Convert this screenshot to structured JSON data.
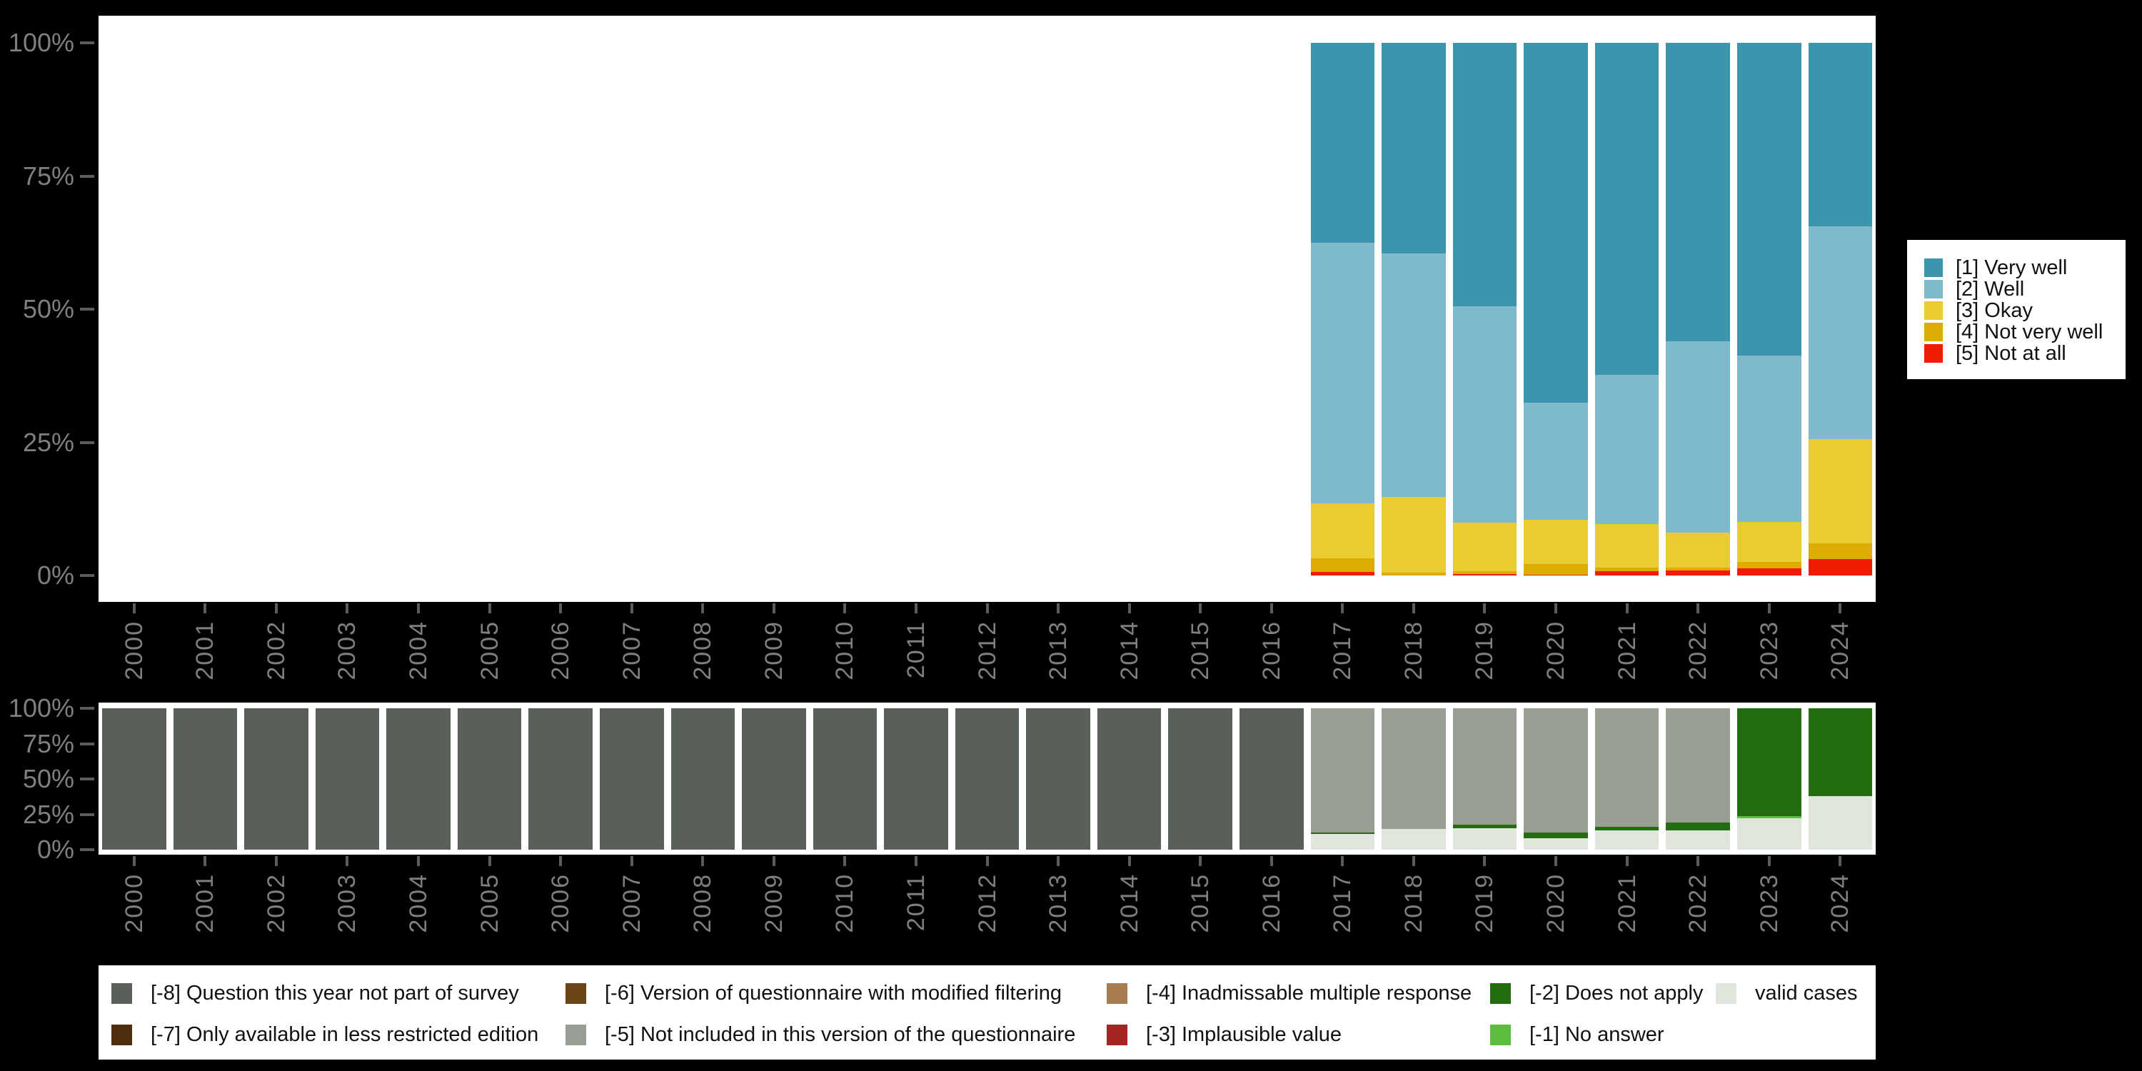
{
  "figure": {
    "background": "#000000",
    "plot_background": "#ffffff",
    "axis_text_color": "#7f7f7f",
    "tick_color": "#5c5c5c"
  },
  "axes": {
    "y_tick_labels": [
      "100%",
      "75%",
      "50%",
      "25%",
      "0%"
    ],
    "years": [
      "2000",
      "2001",
      "2002",
      "2003",
      "2004",
      "2005",
      "2006",
      "2007",
      "2008",
      "2009",
      "2010",
      "2011",
      "2012",
      "2013",
      "2014",
      "2015",
      "2016",
      "2017",
      "2018",
      "2019",
      "2020",
      "2021",
      "2022",
      "2023",
      "2024"
    ]
  },
  "response_legend": {
    "items": [
      {
        "label": "[1] Very well",
        "color": "#3b96ad"
      },
      {
        "label": "[2] Well",
        "color": "#7fbacc"
      },
      {
        "label": "[3] Okay",
        "color": "#e9cc31"
      },
      {
        "label": "[4] Not very well",
        "color": "#dcac00"
      },
      {
        "label": "[5] Not at all",
        "color": "#f21c04"
      }
    ]
  },
  "missing_legend": {
    "columns": [
      [
        {
          "label": "[-8] Question this year not part of survey",
          "color": "#59605a"
        },
        {
          "label": "[-7] Only available in less restricted edition",
          "color": "#4f2d0e"
        }
      ],
      [
        {
          "label": "[-6] Version of questionnaire with modified filtering",
          "color": "#6d4418"
        },
        {
          "label": "[-5] Not included in this version of the questionnaire",
          "color": "#999e93"
        }
      ],
      [
        {
          "label": "[-4] Inadmissable multiple response",
          "color": "#a87c50"
        },
        {
          "label": "[-3] Implausible value",
          "color": "#a32420"
        }
      ],
      [
        {
          "label": "[-2] Does not apply",
          "color": "#236c11"
        },
        {
          "label": "[-1] No answer",
          "color": "#5cbe41"
        }
      ],
      [
        {
          "label": "valid cases",
          "color": "#e1e6dd"
        }
      ]
    ]
  },
  "chart_data": [
    {
      "type": "bar",
      "stacked": true,
      "unit": "percent",
      "title": "",
      "xlabel": "",
      "ylabel": "",
      "ylim": [
        0,
        100
      ],
      "yticks": [
        "0%",
        "25%",
        "50%",
        "75%",
        "100%"
      ],
      "grid": false,
      "legend_position": "right",
      "categories": [
        "2000",
        "2001",
        "2002",
        "2003",
        "2004",
        "2005",
        "2006",
        "2007",
        "2008",
        "2009",
        "2010",
        "2011",
        "2012",
        "2013",
        "2014",
        "2015",
        "2016",
        "2017",
        "2018",
        "2019",
        "2020",
        "2021",
        "2022",
        "2023",
        "2024"
      ],
      "stack_order_bottom_to_top": [
        "[5] Not at all",
        "[4] Not very well",
        "[3] Okay",
        "[2] Well",
        "[1] Very well"
      ],
      "series": [
        {
          "name": "[1] Very well",
          "color": "#3b96ad",
          "values": [
            0,
            0,
            0,
            0,
            0,
            0,
            0,
            0,
            0,
            0,
            0,
            0,
            0,
            0,
            0,
            0,
            0,
            37.5,
            39.5,
            49.5,
            67.5,
            62.3,
            56.0,
            58.7,
            34.4
          ]
        },
        {
          "name": "[2] Well",
          "color": "#7fbacc",
          "values": [
            0,
            0,
            0,
            0,
            0,
            0,
            0,
            0,
            0,
            0,
            0,
            0,
            0,
            0,
            0,
            0,
            0,
            49.0,
            45.8,
            40.6,
            22.0,
            28.0,
            36.0,
            31.3,
            40.0
          ]
        },
        {
          "name": "[3] Okay",
          "color": "#e9cc31",
          "values": [
            0,
            0,
            0,
            0,
            0,
            0,
            0,
            0,
            0,
            0,
            0,
            0,
            0,
            0,
            0,
            0,
            0,
            10.3,
            14.2,
            9.1,
            8.4,
            8.2,
            6.5,
            7.5,
            19.6
          ]
        },
        {
          "name": "[4] Not very well",
          "color": "#dcac00",
          "values": [
            0,
            0,
            0,
            0,
            0,
            0,
            0,
            0,
            0,
            0,
            0,
            0,
            0,
            0,
            0,
            0,
            0,
            2.5,
            0.5,
            0.5,
            2.0,
            0.7,
            0.6,
            1.2,
            2.9
          ]
        },
        {
          "name": "[5] Not at all",
          "color": "#f21c04",
          "values": [
            0,
            0,
            0,
            0,
            0,
            0,
            0,
            0,
            0,
            0,
            0,
            0,
            0,
            0,
            0,
            0,
            0,
            0.7,
            0.0,
            0.3,
            0.1,
            0.8,
            0.9,
            1.3,
            3.1
          ]
        }
      ]
    },
    {
      "type": "bar",
      "stacked": true,
      "unit": "percent",
      "title": "",
      "xlabel": "",
      "ylabel": "",
      "ylim": [
        0,
        100
      ],
      "yticks": [
        "0%",
        "25%",
        "50%",
        "75%",
        "100%"
      ],
      "grid": false,
      "legend_position": "bottom",
      "categories": [
        "2000",
        "2001",
        "2002",
        "2003",
        "2004",
        "2005",
        "2006",
        "2007",
        "2008",
        "2009",
        "2010",
        "2011",
        "2012",
        "2013",
        "2014",
        "2015",
        "2016",
        "2017",
        "2018",
        "2019",
        "2020",
        "2021",
        "2022",
        "2023",
        "2024"
      ],
      "stack_order_bottom_to_top": [
        "valid cases",
        "[-1] No answer",
        "[-2] Does not apply",
        "[-3] Implausible value",
        "[-4] Inadmissable multiple response",
        "[-5] Not included in this version of the questionnaire",
        "[-6] Version of questionnaire with modified filtering",
        "[-7] Only available in less restricted edition",
        "[-8] Question this year not part of survey"
      ],
      "series": [
        {
          "name": "[-8] Question this year not part of survey",
          "color": "#59605a",
          "values": [
            100,
            100,
            100,
            100,
            100,
            100,
            100,
            100,
            100,
            100,
            100,
            100,
            100,
            100,
            100,
            100,
            100,
            0,
            0,
            0,
            0,
            0,
            0,
            0,
            0
          ]
        },
        {
          "name": "[-7] Only available in less restricted edition",
          "color": "#4f2d0e",
          "values": [
            0,
            0,
            0,
            0,
            0,
            0,
            0,
            0,
            0,
            0,
            0,
            0,
            0,
            0,
            0,
            0,
            0,
            0,
            0,
            0,
            0,
            0,
            0,
            0,
            0
          ]
        },
        {
          "name": "[-6] Version of questionnaire with modified filtering",
          "color": "#6d4418",
          "values": [
            0,
            0,
            0,
            0,
            0,
            0,
            0,
            0,
            0,
            0,
            0,
            0,
            0,
            0,
            0,
            0,
            0,
            0,
            0,
            0,
            0,
            0,
            0,
            0,
            0
          ]
        },
        {
          "name": "[-5] Not included in this version of the questionnaire",
          "color": "#999e93",
          "values": [
            0,
            0,
            0,
            0,
            0,
            0,
            0,
            0,
            0,
            0,
            0,
            0,
            0,
            0,
            0,
            0,
            0,
            88.0,
            85.5,
            82.5,
            88.0,
            84.0,
            81.0,
            0,
            0
          ]
        },
        {
          "name": "[-4] Inadmissable multiple response",
          "color": "#a87c50",
          "values": [
            0,
            0,
            0,
            0,
            0,
            0,
            0,
            0,
            0,
            0,
            0,
            0,
            0,
            0,
            0,
            0,
            0,
            0,
            0,
            0,
            0,
            0,
            0,
            0,
            0
          ]
        },
        {
          "name": "[-3] Implausible value",
          "color": "#a32420",
          "values": [
            0,
            0,
            0,
            0,
            0,
            0,
            0,
            0,
            0,
            0,
            0,
            0,
            0,
            0,
            0,
            0,
            0,
            0,
            0,
            0,
            0,
            0,
            0,
            0,
            0
          ]
        },
        {
          "name": "[-2] Does not apply",
          "color": "#236c11",
          "values": [
            0,
            0,
            0,
            0,
            0,
            0,
            0,
            0,
            0,
            0,
            0,
            0,
            0,
            0,
            0,
            0,
            0,
            1.0,
            0.0,
            2.5,
            4.0,
            2.5,
            5.5,
            76.5,
            62.0
          ]
        },
        {
          "name": "[-1] No answer",
          "color": "#5cbe41",
          "values": [
            0,
            0,
            0,
            0,
            0,
            0,
            0,
            0,
            0,
            0,
            0,
            0,
            0,
            0,
            0,
            0,
            0,
            0,
            0,
            0,
            0,
            0,
            0,
            1.5,
            0
          ]
        },
        {
          "name": "valid cases",
          "color": "#e1e6dd",
          "values": [
            0,
            0,
            0,
            0,
            0,
            0,
            0,
            0,
            0,
            0,
            0,
            0,
            0,
            0,
            0,
            0,
            0,
            11.0,
            14.5,
            15.0,
            8.0,
            13.5,
            13.5,
            22.0,
            38.0
          ]
        }
      ]
    }
  ]
}
